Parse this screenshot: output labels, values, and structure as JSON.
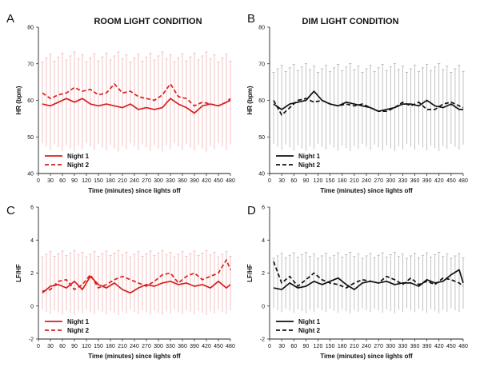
{
  "chart_data": [
    {
      "type": "line",
      "panel_letter": "A",
      "title": "ROOM LIGHT CONDITION",
      "xlabel": "Time (minutes) since lights off",
      "ylabel": "HR (bpm)",
      "xlim": [
        0,
        480
      ],
      "ylim": [
        40,
        80
      ],
      "xticks": [
        0,
        30,
        60,
        90,
        120,
        150,
        180,
        210,
        240,
        270,
        300,
        330,
        360,
        390,
        420,
        450,
        480
      ],
      "yticks": [
        40,
        50,
        60,
        70,
        80
      ],
      "grid": false,
      "legend": "bottom-left",
      "colors": {
        "series": "#d81e1e",
        "error_bars": "#f2a9a9"
      },
      "series": [
        {
          "name": "Night 1",
          "style": "solid",
          "x": [
            10,
            30,
            50,
            70,
            90,
            110,
            130,
            150,
            170,
            190,
            210,
            230,
            250,
            270,
            290,
            310,
            330,
            350,
            370,
            390,
            410,
            430,
            450,
            470,
            480
          ],
          "y": [
            59,
            58.5,
            59.5,
            60.5,
            59.5,
            60.5,
            59,
            58.5,
            59,
            58.5,
            58,
            59,
            57.5,
            58,
            57.5,
            58,
            60.5,
            59,
            58,
            56.5,
            58.5,
            59,
            58.5,
            59.5,
            60
          ]
        },
        {
          "name": "Night 2",
          "style": "dashed",
          "x": [
            10,
            30,
            50,
            70,
            90,
            110,
            130,
            150,
            170,
            190,
            210,
            230,
            250,
            270,
            290,
            310,
            330,
            350,
            370,
            390,
            410,
            430,
            450,
            470,
            480
          ],
          "y": [
            62,
            60.5,
            61.5,
            62,
            63.5,
            62.5,
            63,
            61.5,
            62,
            64.5,
            62,
            62.5,
            61,
            60.5,
            60,
            61.5,
            64.5,
            61,
            60.5,
            58.5,
            59.5,
            59,
            58.5,
            59.5,
            60.5
          ]
        }
      ],
      "error_bars": {
        "x_step": 10,
        "upper": 72,
        "lower": 47
      }
    },
    {
      "type": "line",
      "panel_letter": "B",
      "title": "DIM LIGHT CONDITION",
      "xlabel": "Time (minutes) since lights off",
      "ylabel": "HR (bpm)",
      "xlim": [
        0,
        480
      ],
      "ylim": [
        40,
        80
      ],
      "xticks": [
        0,
        30,
        60,
        90,
        120,
        150,
        180,
        210,
        240,
        270,
        300,
        330,
        360,
        390,
        420,
        450,
        480
      ],
      "yticks": [
        40,
        50,
        60,
        70,
        80
      ],
      "grid": false,
      "legend": "bottom-left",
      "colors": {
        "series": "#111111",
        "error_bars": "#a8a8a8"
      },
      "series": [
        {
          "name": "Night 1",
          "style": "solid",
          "x": [
            10,
            30,
            50,
            70,
            90,
            110,
            130,
            150,
            170,
            190,
            210,
            230,
            250,
            270,
            290,
            310,
            330,
            350,
            370,
            390,
            410,
            430,
            450,
            470,
            480
          ],
          "y": [
            59,
            57.5,
            59,
            59.5,
            60,
            62.5,
            60,
            59,
            58.5,
            59.5,
            59,
            58.5,
            58,
            57,
            57.5,
            58,
            59,
            59,
            58.5,
            60,
            58.5,
            58,
            59,
            57.5,
            57.5
          ]
        },
        {
          "name": "Night 2",
          "style": "dashed",
          "x": [
            10,
            30,
            50,
            70,
            90,
            110,
            130,
            150,
            170,
            190,
            210,
            230,
            250,
            270,
            290,
            310,
            330,
            350,
            370,
            390,
            410,
            430,
            450,
            470,
            480
          ],
          "y": [
            60,
            56,
            58,
            60,
            60.5,
            59.5,
            60,
            59,
            58.5,
            59,
            58.5,
            59,
            58,
            57,
            57,
            58,
            59.5,
            58.5,
            59.5,
            57.5,
            57.5,
            59,
            59.5,
            58.5,
            58
          ]
        }
      ],
      "error_bars": {
        "x_step": 10,
        "upper": 69,
        "lower": 47
      }
    },
    {
      "type": "line",
      "panel_letter": "C",
      "title": "",
      "xlabel": "Time (minutes) since lights off",
      "ylabel": "LF/HF",
      "xlim": [
        0,
        480
      ],
      "ylim": [
        -2,
        6
      ],
      "xticks": [
        0,
        30,
        60,
        90,
        120,
        150,
        180,
        210,
        240,
        270,
        300,
        330,
        360,
        390,
        420,
        450,
        480
      ],
      "yticks": [
        -2,
        0,
        2,
        4,
        6
      ],
      "grid": false,
      "legend": "bottom-left",
      "colors": {
        "series": "#d81e1e",
        "error_bars": "#f2a9a9"
      },
      "series": [
        {
          "name": "Night 1",
          "style": "solid",
          "x": [
            10,
            30,
            50,
            70,
            90,
            110,
            130,
            150,
            170,
            190,
            210,
            230,
            250,
            270,
            290,
            310,
            330,
            350,
            370,
            390,
            410,
            430,
            450,
            470,
            480
          ],
          "y": [
            0.8,
            1.2,
            1.3,
            1.1,
            1.5,
            1.0,
            1.8,
            1.3,
            1.1,
            1.4,
            1.0,
            0.8,
            1.1,
            1.3,
            1.2,
            1.4,
            1.5,
            1.3,
            1.4,
            1.2,
            1.3,
            1.1,
            1.5,
            1.1,
            1.3
          ]
        },
        {
          "name": "Night 2",
          "style": "dashed",
          "x": [
            10,
            30,
            50,
            70,
            90,
            110,
            130,
            150,
            170,
            190,
            210,
            230,
            250,
            270,
            290,
            310,
            330,
            350,
            370,
            390,
            410,
            430,
            450,
            470,
            480
          ],
          "y": [
            0.9,
            1.0,
            1.5,
            1.6,
            1.0,
            1.3,
            1.9,
            1.1,
            1.3,
            1.6,
            1.8,
            1.6,
            1.4,
            1.2,
            1.5,
            1.9,
            2.0,
            1.4,
            1.8,
            2.0,
            1.6,
            1.8,
            2.0,
            2.8,
            2.2
          ]
        }
      ],
      "error_bars": {
        "x_step": 10,
        "upper": 3.2,
        "lower": -0.4
      }
    },
    {
      "type": "line",
      "panel_letter": "D",
      "title": "",
      "xlabel": "Time (minutes) since lights off",
      "ylabel": "LF/HF",
      "xlim": [
        0,
        480
      ],
      "ylim": [
        -2,
        6
      ],
      "xticks": [
        0,
        30,
        60,
        90,
        120,
        150,
        180,
        210,
        240,
        270,
        300,
        330,
        360,
        390,
        420,
        450,
        480
      ],
      "yticks": [
        -2,
        0,
        2,
        4,
        6
      ],
      "grid": false,
      "legend": "bottom-left",
      "colors": {
        "series": "#111111",
        "error_bars": "#a8a8a8"
      },
      "series": [
        {
          "name": "Night 1",
          "style": "solid",
          "x": [
            10,
            30,
            50,
            70,
            90,
            110,
            130,
            150,
            170,
            190,
            210,
            230,
            250,
            270,
            290,
            310,
            330,
            350,
            370,
            390,
            410,
            430,
            450,
            470,
            480
          ],
          "y": [
            1.1,
            1.0,
            1.4,
            1.1,
            1.2,
            1.5,
            1.3,
            1.5,
            1.7,
            1.3,
            1.0,
            1.4,
            1.5,
            1.4,
            1.5,
            1.3,
            1.4,
            1.4,
            1.2,
            1.6,
            1.4,
            1.5,
            1.9,
            2.2,
            1.4
          ]
        },
        {
          "name": "Night 2",
          "style": "dashed",
          "x": [
            10,
            30,
            50,
            70,
            90,
            110,
            130,
            150,
            170,
            190,
            210,
            230,
            250,
            270,
            290,
            310,
            330,
            350,
            370,
            390,
            410,
            430,
            450,
            470,
            480
          ],
          "y": [
            2.7,
            1.4,
            1.8,
            1.2,
            1.6,
            2.0,
            1.6,
            1.4,
            1.3,
            1.1,
            1.4,
            1.6,
            1.5,
            1.4,
            1.8,
            1.6,
            1.3,
            1.7,
            1.3,
            1.5,
            1.3,
            1.7,
            1.6,
            1.4,
            1.2
          ]
        }
      ],
      "error_bars": {
        "x_step": 10,
        "upper": 3.1,
        "lower": -0.3
      }
    }
  ]
}
